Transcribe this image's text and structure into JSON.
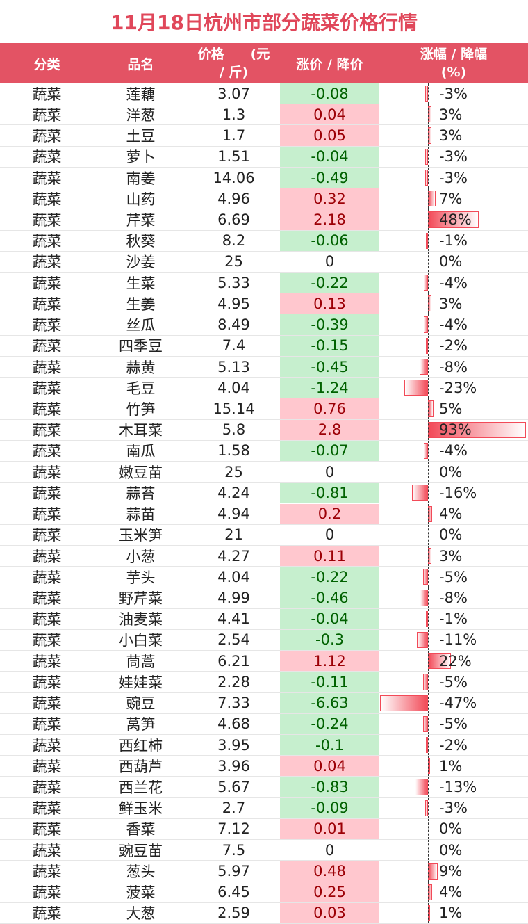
{
  "title": "11月18日杭州市部分蔬菜价格行情",
  "headers": {
    "category": "分类",
    "name": "品名",
    "price_line1": "价格　　(元",
    "price_line2": "/ 斤)",
    "change": "涨价 / 降价",
    "pct_line1": "涨幅 / 降幅",
    "pct_line2": "(%)"
  },
  "colors": {
    "title": "#e0475a",
    "header_bg": "#e35364",
    "up_bg": "#ffc7ce",
    "up_text": "#9c0006",
    "down_bg": "#c6efce",
    "down_text": "#006100",
    "bar": "#f24a58"
  },
  "rows": [
    {
      "category": "蔬菜",
      "name": "莲藕",
      "price": "3.07",
      "change": "-0.08",
      "pct": "-3%",
      "pct_value": -3
    },
    {
      "category": "蔬菜",
      "name": "洋葱",
      "price": "1.3",
      "change": "0.04",
      "pct": "3%",
      "pct_value": 3
    },
    {
      "category": "蔬菜",
      "name": "土豆",
      "price": "1.7",
      "change": "0.05",
      "pct": "3%",
      "pct_value": 3
    },
    {
      "category": "蔬菜",
      "name": "萝卜",
      "price": "1.51",
      "change": "-0.04",
      "pct": "-3%",
      "pct_value": -3
    },
    {
      "category": "蔬菜",
      "name": "南姜",
      "price": "14.06",
      "change": "-0.49",
      "pct": "-3%",
      "pct_value": -3
    },
    {
      "category": "蔬菜",
      "name": "山药",
      "price": "4.96",
      "change": "0.32",
      "pct": "7%",
      "pct_value": 7
    },
    {
      "category": "蔬菜",
      "name": "芹菜",
      "price": "6.69",
      "change": "2.18",
      "pct": "48%",
      "pct_value": 48
    },
    {
      "category": "蔬菜",
      "name": "秋葵",
      "price": "8.2",
      "change": "-0.06",
      "pct": "-1%",
      "pct_value": -1
    },
    {
      "category": "蔬菜",
      "name": "沙姜",
      "price": "25",
      "change": "0",
      "pct": "0%",
      "pct_value": 0
    },
    {
      "category": "蔬菜",
      "name": "生菜",
      "price": "5.33",
      "change": "-0.22",
      "pct": "-4%",
      "pct_value": -4
    },
    {
      "category": "蔬菜",
      "name": "生姜",
      "price": "4.95",
      "change": "0.13",
      "pct": "3%",
      "pct_value": 3
    },
    {
      "category": "蔬菜",
      "name": "丝瓜",
      "price": "8.49",
      "change": "-0.39",
      "pct": "-4%",
      "pct_value": -4
    },
    {
      "category": "蔬菜",
      "name": "四季豆",
      "price": "7.4",
      "change": "-0.15",
      "pct": "-2%",
      "pct_value": -2
    },
    {
      "category": "蔬菜",
      "name": "蒜黄",
      "price": "5.13",
      "change": "-0.45",
      "pct": "-8%",
      "pct_value": -8
    },
    {
      "category": "蔬菜",
      "name": "毛豆",
      "price": "4.04",
      "change": "-1.24",
      "pct": "-23%",
      "pct_value": -23
    },
    {
      "category": "蔬菜",
      "name": "竹笋",
      "price": "15.14",
      "change": "0.76",
      "pct": "5%",
      "pct_value": 5
    },
    {
      "category": "蔬菜",
      "name": "木耳菜",
      "price": "5.8",
      "change": "2.8",
      "pct": "93%",
      "pct_value": 93
    },
    {
      "category": "蔬菜",
      "name": "南瓜",
      "price": "1.58",
      "change": "-0.07",
      "pct": "-4%",
      "pct_value": -4
    },
    {
      "category": "蔬菜",
      "name": "嫩豆苗",
      "price": "25",
      "change": "0",
      "pct": "0%",
      "pct_value": 0
    },
    {
      "category": "蔬菜",
      "name": "蒜苔",
      "price": "4.24",
      "change": "-0.81",
      "pct": "-16%",
      "pct_value": -16
    },
    {
      "category": "蔬菜",
      "name": "蒜苗",
      "price": "4.94",
      "change": "0.2",
      "pct": "4%",
      "pct_value": 4
    },
    {
      "category": "蔬菜",
      "name": "玉米笋",
      "price": "21",
      "change": "0",
      "pct": "0%",
      "pct_value": 0
    },
    {
      "category": "蔬菜",
      "name": "小葱",
      "price": "4.27",
      "change": "0.11",
      "pct": "3%",
      "pct_value": 3
    },
    {
      "category": "蔬菜",
      "name": "芋头",
      "price": "4.04",
      "change": "-0.22",
      "pct": "-5%",
      "pct_value": -5
    },
    {
      "category": "蔬菜",
      "name": "野芹菜",
      "price": "4.99",
      "change": "-0.46",
      "pct": "-8%",
      "pct_value": -8
    },
    {
      "category": "蔬菜",
      "name": "油麦菜",
      "price": "4.41",
      "change": "-0.04",
      "pct": "-1%",
      "pct_value": -1
    },
    {
      "category": "蔬菜",
      "name": "小白菜",
      "price": "2.54",
      "change": "-0.3",
      "pct": "-11%",
      "pct_value": -11
    },
    {
      "category": "蔬菜",
      "name": "茼蒿",
      "price": "6.21",
      "change": "1.12",
      "pct": "22%",
      "pct_value": 22
    },
    {
      "category": "蔬菜",
      "name": "娃娃菜",
      "price": "2.28",
      "change": "-0.11",
      "pct": "-5%",
      "pct_value": -5
    },
    {
      "category": "蔬菜",
      "name": "豌豆",
      "price": "7.33",
      "change": "-6.63",
      "pct": "-47%",
      "pct_value": -47
    },
    {
      "category": "蔬菜",
      "name": "莴笋",
      "price": "4.68",
      "change": "-0.24",
      "pct": "-5%",
      "pct_value": -5
    },
    {
      "category": "蔬菜",
      "name": "西红柿",
      "price": "3.95",
      "change": "-0.1",
      "pct": "-2%",
      "pct_value": -2
    },
    {
      "category": "蔬菜",
      "name": "西葫芦",
      "price": "3.96",
      "change": "0.04",
      "pct": "1%",
      "pct_value": 1
    },
    {
      "category": "蔬菜",
      "name": "西兰花",
      "price": "5.67",
      "change": "-0.83",
      "pct": "-13%",
      "pct_value": -13
    },
    {
      "category": "蔬菜",
      "name": "鲜玉米",
      "price": "2.7",
      "change": "-0.09",
      "pct": "-3%",
      "pct_value": -3
    },
    {
      "category": "蔬菜",
      "name": "香菜",
      "price": "7.12",
      "change": "0.01",
      "pct": "0%",
      "pct_value": 0
    },
    {
      "category": "蔬菜",
      "name": "豌豆苗",
      "price": "7.5",
      "change": "0",
      "pct": "0%",
      "pct_value": 0
    },
    {
      "category": "蔬菜",
      "name": "葱头",
      "price": "5.97",
      "change": "0.48",
      "pct": "9%",
      "pct_value": 9
    },
    {
      "category": "蔬菜",
      "name": "菠菜",
      "price": "6.45",
      "change": "0.25",
      "pct": "4%",
      "pct_value": 4
    },
    {
      "category": "蔬菜",
      "name": "大葱",
      "price": "2.59",
      "change": "0.03",
      "pct": "1%",
      "pct_value": 1
    }
  ]
}
